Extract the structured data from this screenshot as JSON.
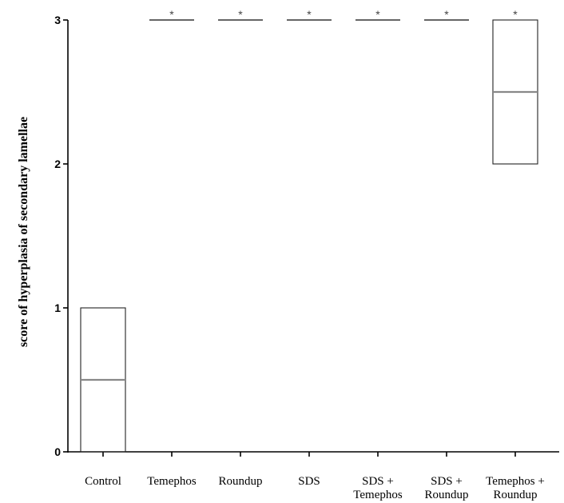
{
  "chart_data": {
    "type": "box",
    "title": "",
    "xlabel": "",
    "ylabel": "score of hyperplasia of secondary lamellae",
    "ylim": [
      0,
      3
    ],
    "yticks": [
      0,
      1,
      2,
      3
    ],
    "grid": false,
    "categories": [
      [
        "Control"
      ],
      [
        "Temephos"
      ],
      [
        "Roundup"
      ],
      [
        "SDS"
      ],
      [
        "SDS +",
        "Temephos"
      ],
      [
        "SDS +",
        "Roundup"
      ],
      [
        "Temephos +",
        "Roundup"
      ]
    ],
    "boxes": [
      {
        "q1": 0,
        "median": 0.5,
        "q3": 1,
        "significance": ""
      },
      {
        "q1": 3,
        "median": 3,
        "q3": 3,
        "significance": "*"
      },
      {
        "q1": 3,
        "median": 3,
        "q3": 3,
        "significance": "*"
      },
      {
        "q1": 3,
        "median": 3,
        "q3": 3,
        "significance": "*"
      },
      {
        "q1": 3,
        "median": 3,
        "q3": 3,
        "significance": "*"
      },
      {
        "q1": 3,
        "median": 3,
        "q3": 3,
        "significance": "*"
      },
      {
        "q1": 2,
        "median": 2.5,
        "q3": 3,
        "significance": "*"
      }
    ]
  }
}
